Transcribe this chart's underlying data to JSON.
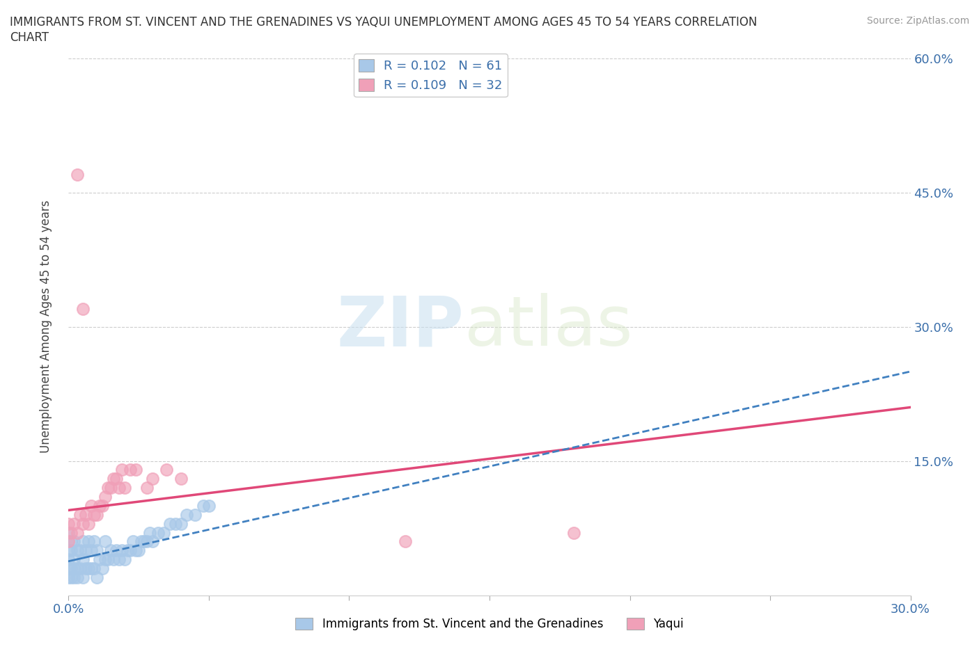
{
  "title_line1": "IMMIGRANTS FROM ST. VINCENT AND THE GRENADINES VS YAQUI UNEMPLOYMENT AMONG AGES 45 TO 54 YEARS CORRELATION",
  "title_line2": "CHART",
  "source_text": "Source: ZipAtlas.com",
  "ylabel": "Unemployment Among Ages 45 to 54 years",
  "xmin": 0.0,
  "xmax": 0.3,
  "ymin": 0.0,
  "ymax": 0.6,
  "blue_R": 0.102,
  "blue_N": 61,
  "pink_R": 0.109,
  "pink_N": 32,
  "blue_color": "#a8c8e8",
  "pink_color": "#f0a0b8",
  "blue_line_color": "#4080c0",
  "pink_line_color": "#e04878",
  "watermark_zip": "ZIP",
  "watermark_atlas": "atlas",
  "legend_label_blue": "Immigrants from St. Vincent and the Grenadines",
  "legend_label_pink": "Yaqui",
  "blue_scatter_x": [
    0.0,
    0.0,
    0.0,
    0.0,
    0.0,
    0.001,
    0.001,
    0.001,
    0.001,
    0.002,
    0.002,
    0.002,
    0.002,
    0.003,
    0.003,
    0.003,
    0.004,
    0.004,
    0.005,
    0.005,
    0.005,
    0.006,
    0.006,
    0.007,
    0.007,
    0.008,
    0.008,
    0.009,
    0.009,
    0.01,
    0.01,
    0.011,
    0.012,
    0.013,
    0.013,
    0.014,
    0.015,
    0.016,
    0.017,
    0.018,
    0.019,
    0.02,
    0.021,
    0.022,
    0.023,
    0.024,
    0.025,
    0.026,
    0.027,
    0.028,
    0.029,
    0.03,
    0.032,
    0.034,
    0.036,
    0.038,
    0.04,
    0.042,
    0.045,
    0.048,
    0.05
  ],
  "blue_scatter_y": [
    0.02,
    0.03,
    0.04,
    0.05,
    0.07,
    0.02,
    0.03,
    0.05,
    0.06,
    0.02,
    0.03,
    0.04,
    0.06,
    0.02,
    0.03,
    0.05,
    0.03,
    0.05,
    0.02,
    0.04,
    0.06,
    0.03,
    0.05,
    0.03,
    0.06,
    0.03,
    0.05,
    0.03,
    0.06,
    0.02,
    0.05,
    0.04,
    0.03,
    0.04,
    0.06,
    0.04,
    0.05,
    0.04,
    0.05,
    0.04,
    0.05,
    0.04,
    0.05,
    0.05,
    0.06,
    0.05,
    0.05,
    0.06,
    0.06,
    0.06,
    0.07,
    0.06,
    0.07,
    0.07,
    0.08,
    0.08,
    0.08,
    0.09,
    0.09,
    0.1,
    0.1
  ],
  "pink_scatter_x": [
    0.0,
    0.0,
    0.001,
    0.002,
    0.003,
    0.004,
    0.005,
    0.006,
    0.007,
    0.008,
    0.009,
    0.01,
    0.011,
    0.012,
    0.013,
    0.014,
    0.015,
    0.016,
    0.017,
    0.018,
    0.019,
    0.02,
    0.022,
    0.024,
    0.028,
    0.03,
    0.035,
    0.04,
    0.12,
    0.005,
    0.003,
    0.18
  ],
  "pink_scatter_y": [
    0.06,
    0.08,
    0.07,
    0.08,
    0.07,
    0.09,
    0.08,
    0.09,
    0.08,
    0.1,
    0.09,
    0.09,
    0.1,
    0.1,
    0.11,
    0.12,
    0.12,
    0.13,
    0.13,
    0.12,
    0.14,
    0.12,
    0.14,
    0.14,
    0.12,
    0.13,
    0.14,
    0.13,
    0.06,
    0.32,
    0.47,
    0.07
  ],
  "blue_line_x0": 0.0,
  "blue_line_x1": 0.3,
  "blue_line_y0": 0.038,
  "blue_line_y1": 0.25,
  "pink_line_x0": 0.0,
  "pink_line_x1": 0.3,
  "pink_line_y0": 0.095,
  "pink_line_y1": 0.21
}
